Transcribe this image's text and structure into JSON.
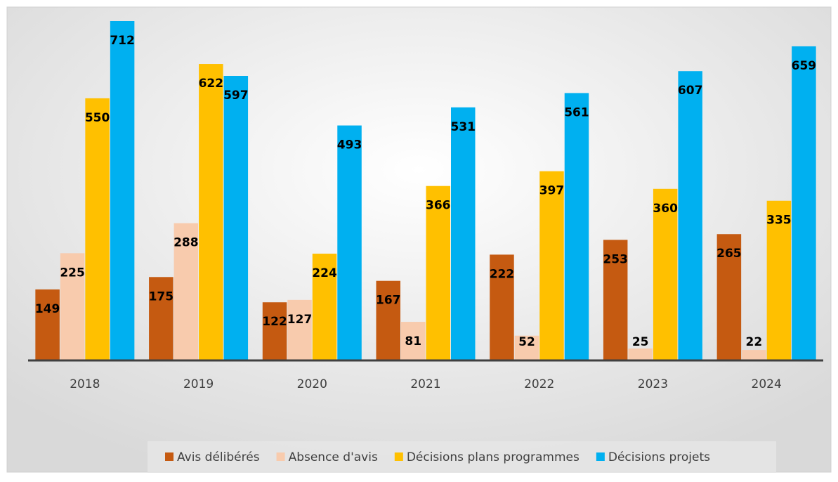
{
  "chart_data": {
    "type": "bar",
    "categories": [
      "2018",
      "2019",
      "2020",
      "2021",
      "2022",
      "2023",
      "2024"
    ],
    "series": [
      {
        "name": "Avis délibérés",
        "color": "#c55a11",
        "values": [
          149,
          175,
          122,
          167,
          222,
          253,
          265
        ]
      },
      {
        "name": "Absence d'avis",
        "color": "#f8cbad",
        "values": [
          225,
          288,
          127,
          81,
          52,
          25,
          22
        ]
      },
      {
        "name": "Décisions plans programmes",
        "color": "#ffc000",
        "values": [
          550,
          622,
          224,
          366,
          397,
          360,
          335
        ]
      },
      {
        "name": "Décisions projets",
        "color": "#00b0f0",
        "values": [
          712,
          597,
          493,
          531,
          561,
          607,
          659
        ]
      }
    ],
    "legend": "bottom"
  }
}
